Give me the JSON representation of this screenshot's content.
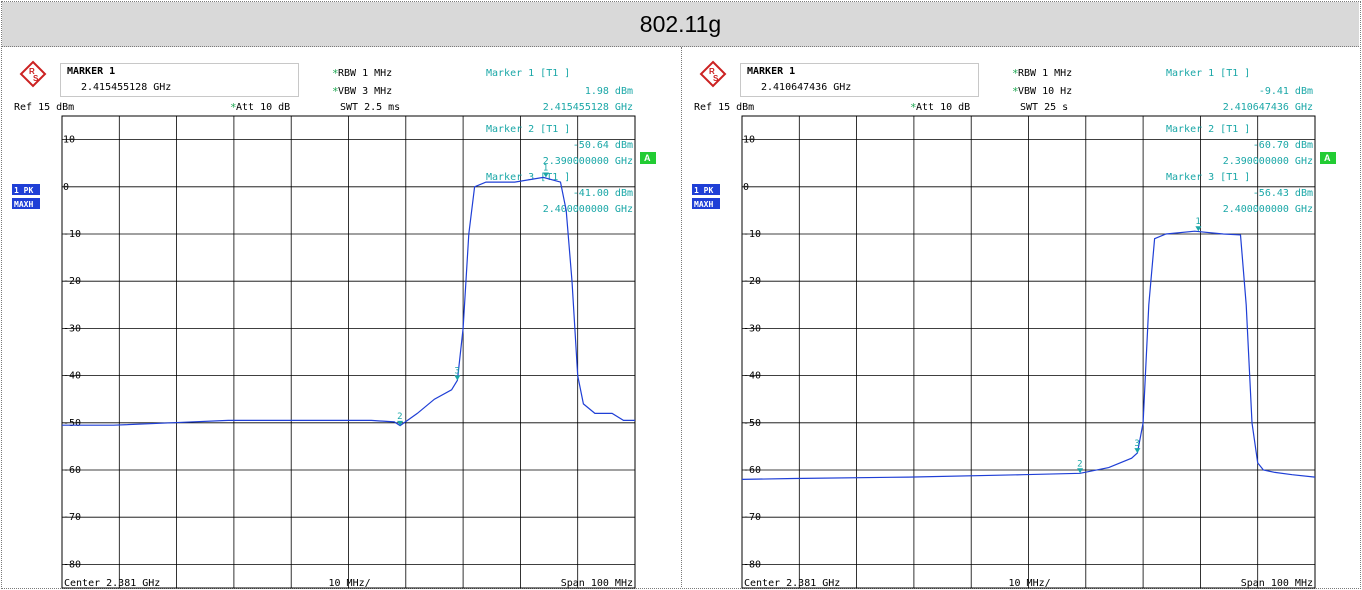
{
  "page_title": "802.11g",
  "colors": {
    "trace": "#1f3fd6",
    "cyan_text": "#1aa7a7",
    "grid": "#000000",
    "badge": "#1f3fd6",
    "green_badge": "#22cc33"
  },
  "panels": [
    {
      "marker_box": {
        "title": "MARKER 1",
        "freq": "2.415455128 GHz"
      },
      "settings": {
        "rbw": "RBW 1 MHz",
        "vbw": "VBW 3 MHz",
        "ref": "Ref  15 dBm",
        "att": "Att  10 dB",
        "swt": "SWT 2.5 ms"
      },
      "markers": [
        {
          "label": "Marker 1 [T1 ]",
          "level": "1.98 dBm",
          "freq": "2.415455128 GHz"
        },
        {
          "label": "Marker 2 [T1 ]",
          "level": "-50.64 dBm",
          "freq": "2.390000000 GHz"
        },
        {
          "label": "Marker 3 [T1 ]",
          "level": "-41.00 dBm",
          "freq": "2.400000000 GHz"
        }
      ],
      "badges": [
        "1 PK",
        "MAXH"
      ],
      "a_badge": "A",
      "footer": {
        "center": "Center  2.381 GHz",
        "div": "10 MHz/",
        "span": "Span  100 MHz"
      }
    },
    {
      "marker_box": {
        "title": "MARKER 1",
        "freq": "2.410647436 GHz"
      },
      "settings": {
        "rbw": "RBW 1 MHz",
        "vbw": "VBW 10 Hz",
        "ref": "Ref  15 dBm",
        "att": "Att  10 dB",
        "swt": "SWT 25 s"
      },
      "markers": [
        {
          "label": "Marker 1 [T1 ]",
          "level": "-9.41 dBm",
          "freq": "2.410647436 GHz"
        },
        {
          "label": "Marker 2 [T1 ]",
          "level": "-60.70 dBm",
          "freq": "2.390000000 GHz"
        },
        {
          "label": "Marker 3 [T1 ]",
          "level": "-56.43 dBm",
          "freq": "2.400000000 GHz"
        }
      ],
      "badges": [
        "1 PK",
        "MAXH"
      ],
      "a_badge": "A",
      "footer": {
        "center": "Center  2.381 GHz",
        "div": "10 MHz/",
        "span": "Span  100 MHz"
      }
    }
  ],
  "chart_data": [
    {
      "type": "line",
      "x_unit": "GHz",
      "y_unit": "dBm",
      "xlim": [
        2.331,
        2.431
      ],
      "ylim": [
        -85,
        15
      ],
      "y_ticks": [
        10,
        0,
        -10,
        -20,
        -30,
        -40,
        -50,
        -60,
        -70,
        -80
      ],
      "grid": true,
      "series": [
        {
          "x": [
            2.331,
            2.34,
            2.35,
            2.36,
            2.37,
            2.38,
            2.385,
            2.389,
            2.39,
            2.393,
            2.396,
            2.399,
            2.4,
            2.401,
            2.402,
            2.403,
            2.405,
            2.41,
            2.415,
            2.418,
            2.419,
            2.42,
            2.421,
            2.422,
            2.424,
            2.427,
            2.429,
            2.431
          ],
          "y": [
            -50.5,
            -50.5,
            -50.0,
            -49.5,
            -49.5,
            -49.5,
            -49.5,
            -49.8,
            -50.6,
            -48.0,
            -45.0,
            -43.0,
            -41.0,
            -30.0,
            -10.0,
            0.0,
            1.0,
            1.0,
            2.0,
            1.0,
            -5.0,
            -20.0,
            -40.0,
            -46.0,
            -48.0,
            -48.0,
            -49.5,
            -49.5
          ]
        }
      ],
      "markers": [
        {
          "id": "1",
          "x": 2.415455128,
          "y": 1.98
        },
        {
          "id": "2",
          "x": 2.39,
          "y": -50.64
        },
        {
          "id": "3",
          "x": 2.4,
          "y": -41.0
        }
      ]
    },
    {
      "type": "line",
      "x_unit": "GHz",
      "y_unit": "dBm",
      "xlim": [
        2.331,
        2.431
      ],
      "ylim": [
        -85,
        15
      ],
      "y_ticks": [
        10,
        0,
        -10,
        -20,
        -30,
        -40,
        -50,
        -60,
        -70,
        -80
      ],
      "grid": true,
      "series": [
        {
          "x": [
            2.331,
            2.34,
            2.36,
            2.38,
            2.39,
            2.395,
            2.399,
            2.4,
            2.401,
            2.402,
            2.403,
            2.405,
            2.41,
            2.415,
            2.418,
            2.419,
            2.42,
            2.421,
            2.422,
            2.424,
            2.427,
            2.431
          ],
          "y": [
            -62.0,
            -61.8,
            -61.5,
            -61.0,
            -60.7,
            -59.5,
            -57.5,
            -56.4,
            -50.0,
            -25.0,
            -11.0,
            -10.0,
            -9.41,
            -10.0,
            -10.2,
            -25.0,
            -50.0,
            -58.5,
            -60.0,
            -60.5,
            -61.0,
            -61.5
          ]
        }
      ],
      "markers": [
        {
          "id": "1",
          "x": 2.410647436,
          "y": -9.41
        },
        {
          "id": "2",
          "x": 2.39,
          "y": -60.7
        },
        {
          "id": "3",
          "x": 2.4,
          "y": -56.43
        }
      ]
    }
  ]
}
